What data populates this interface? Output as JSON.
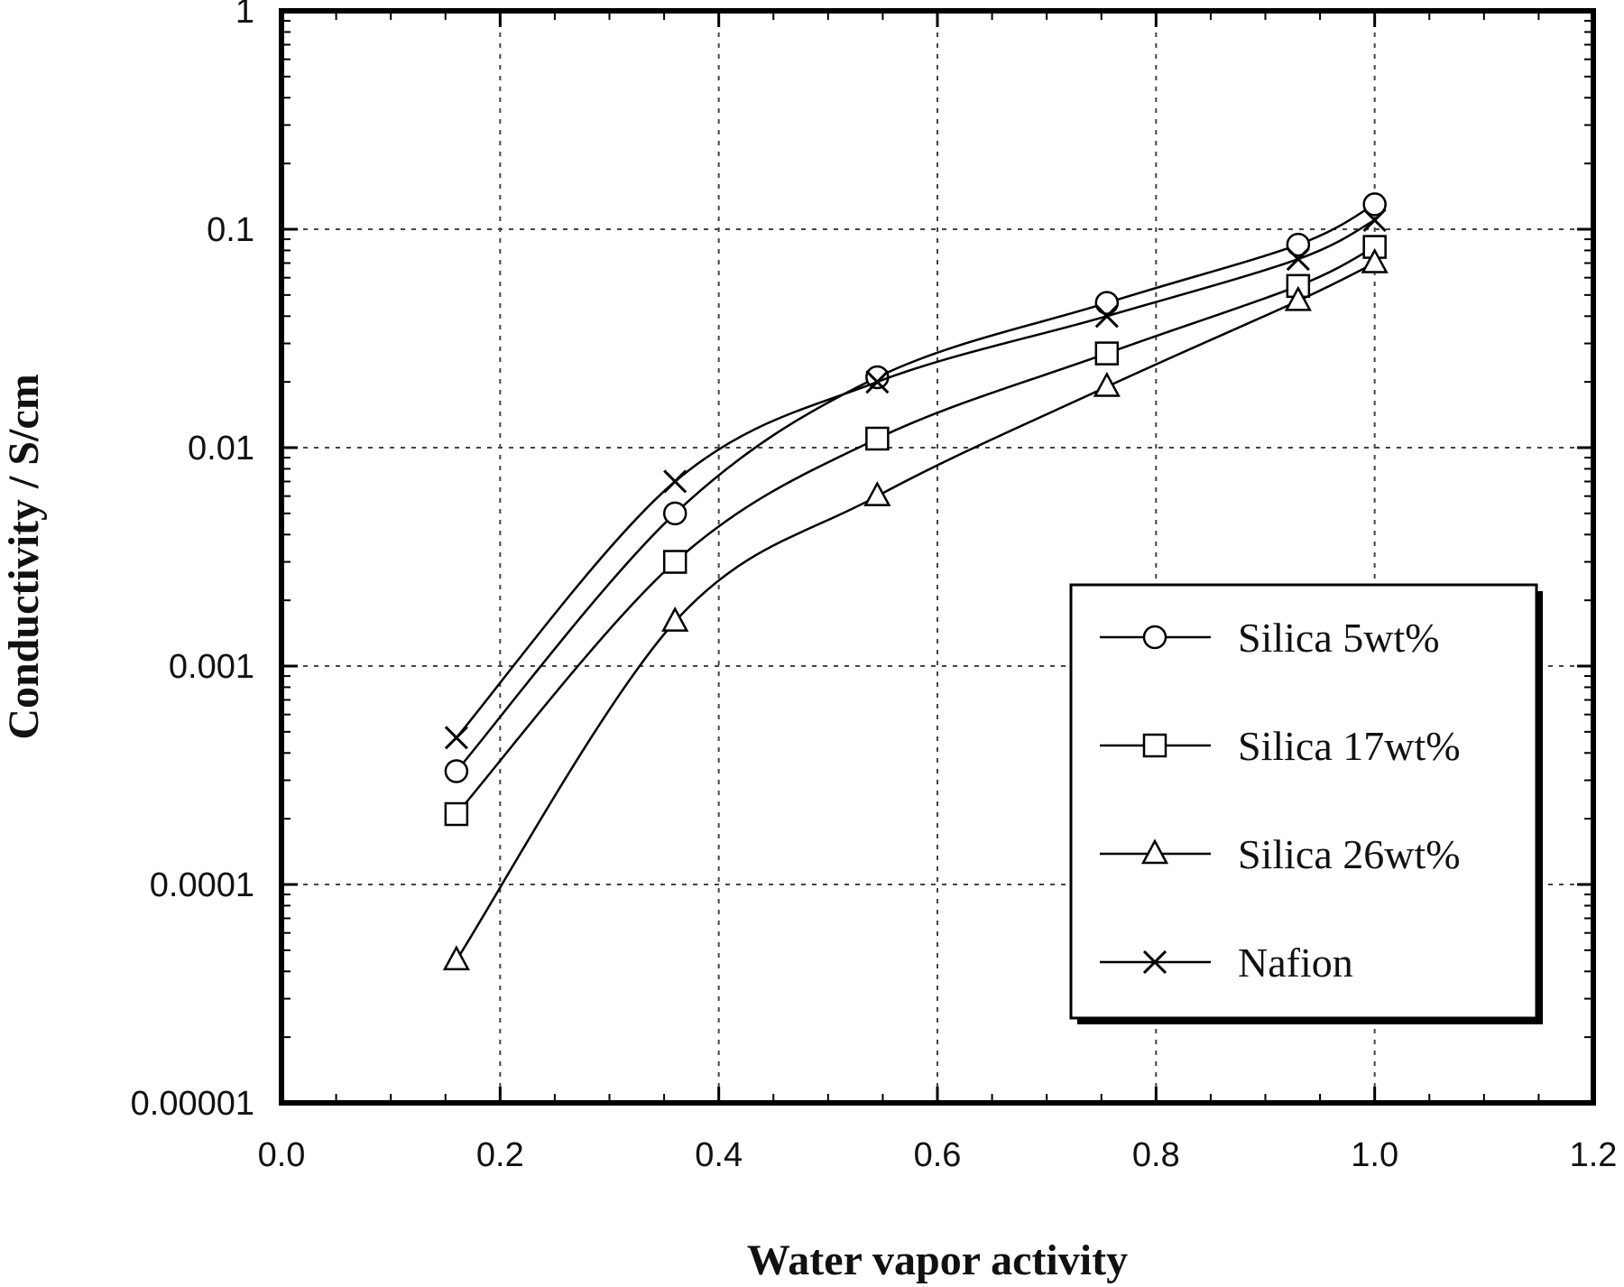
{
  "chart_data": {
    "type": "line",
    "xlabel": "Water vapor activity",
    "ylabel": "Conductivity / S/cm",
    "xlim": [
      0.0,
      1.2
    ],
    "ylim": [
      1e-05,
      1
    ],
    "yscale": "log",
    "grid": true,
    "legend_position": "right",
    "x_ticks": [
      0.0,
      0.2,
      0.4,
      0.6,
      0.8,
      1.0,
      1.2
    ],
    "x_tick_labels": [
      "0.0",
      "0.2",
      "0.4",
      "0.6",
      "0.8",
      "1.0",
      "1.2"
    ],
    "y_ticks": [
      1e-05,
      0.0001,
      0.001,
      0.01,
      0.1,
      1
    ],
    "y_tick_labels": [
      "0.00001",
      "0.0001",
      "0.001",
      "0.01",
      "0.1",
      "1"
    ],
    "series": [
      {
        "name": "Silica 5wt%",
        "marker": "circle",
        "x": [
          0.16,
          0.36,
          0.545,
          0.755,
          0.93,
          1.0
        ],
        "y": [
          0.00033,
          0.005,
          0.021,
          0.046,
          0.085,
          0.13
        ]
      },
      {
        "name": "Silica 17wt%",
        "marker": "square",
        "x": [
          0.16,
          0.36,
          0.545,
          0.755,
          0.93,
          1.0
        ],
        "y": [
          0.00021,
          0.003,
          0.011,
          0.027,
          0.055,
          0.083
        ]
      },
      {
        "name": "Silica 26wt%",
        "marker": "triangle",
        "x": [
          0.16,
          0.36,
          0.545,
          0.755,
          0.93,
          1.0
        ],
        "y": [
          4.5e-05,
          0.0016,
          0.006,
          0.019,
          0.047,
          0.07
        ]
      },
      {
        "name": "Nafion",
        "marker": "x",
        "x": [
          0.16,
          0.36,
          0.545,
          0.755,
          0.93,
          1.0
        ],
        "y": [
          0.00047,
          0.007,
          0.02,
          0.04,
          0.073,
          0.11
        ]
      }
    ]
  }
}
